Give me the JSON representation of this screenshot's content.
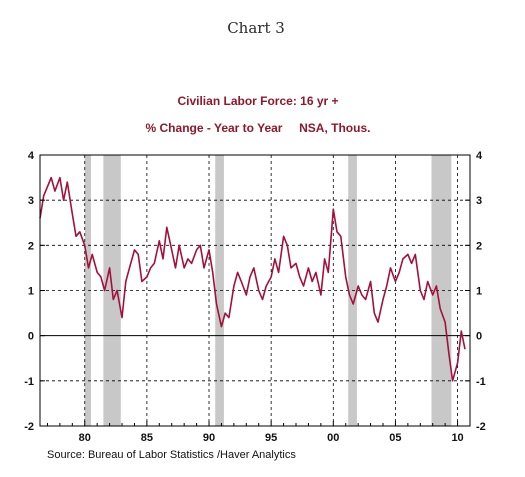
{
  "chart_label": "Chart 3",
  "chart_data": {
    "type": "line",
    "title": "Civilian Labor Force: 16 yr +",
    "subtitle": "% Change - Year to Year     NSA, Thous.",
    "source": "Source:  Bureau of Labor Statistics /Haver Analytics",
    "xlim": [
      1976.4,
      2011.0
    ],
    "ylim": [
      -2,
      4
    ],
    "y_ticks": [
      "4",
      "3",
      "2",
      "1",
      "0",
      "-1",
      "-2"
    ],
    "y_tick_values": [
      4,
      3,
      2,
      1,
      0,
      -1,
      -2
    ],
    "x_ticks": [
      "80",
      "85",
      "90",
      "95",
      "00",
      "05",
      "10"
    ],
    "x_tick_values": [
      1980,
      1985,
      1990,
      1995,
      2000,
      2005,
      2010
    ],
    "grid": true,
    "recessions": [
      {
        "start": 1980.0,
        "end": 1980.5
      },
      {
        "start": 1981.5,
        "end": 1982.9
      },
      {
        "start": 1990.5,
        "end": 1991.2
      },
      {
        "start": 2001.2,
        "end": 2001.9
      },
      {
        "start": 2007.9,
        "end": 2009.5
      }
    ],
    "colors": {
      "line": "#a3113a",
      "recession": "#c8c8c8",
      "title": "#8b1a2e"
    },
    "series": [
      {
        "x": [
          1976.4,
          1976.7,
          1977.0,
          1977.3,
          1977.6,
          1978.0,
          1978.3,
          1978.6,
          1979.0,
          1979.3,
          1979.6,
          1980.0,
          1980.3,
          1980.6,
          1981.0,
          1981.3,
          1981.6,
          1982.0,
          1982.3,
          1982.6,
          1983.0,
          1983.3,
          1983.6,
          1984.0,
          1984.3,
          1984.6,
          1985.0,
          1985.3,
          1985.6,
          1986.0,
          1986.3,
          1986.6,
          1987.0,
          1987.3,
          1987.6,
          1988.0,
          1988.3,
          1988.6,
          1989.0,
          1989.3,
          1989.6,
          1990.0,
          1990.3,
          1990.6,
          1991.0,
          1991.3,
          1991.6,
          1992.0,
          1992.3,
          1992.6,
          1993.0,
          1993.3,
          1993.6,
          1994.0,
          1994.3,
          1994.6,
          1995.0,
          1995.3,
          1995.6,
          1996.0,
          1996.3,
          1996.6,
          1997.0,
          1997.3,
          1997.6,
          1998.0,
          1998.3,
          1998.6,
          1999.0,
          1999.3,
          1999.6,
          2000.0,
          2000.3,
          2000.6,
          2001.0,
          2001.3,
          2001.6,
          2002.0,
          2002.3,
          2002.6,
          2003.0,
          2003.3,
          2003.6,
          2004.0,
          2004.3,
          2004.6,
          2005.0,
          2005.3,
          2005.6,
          2006.0,
          2006.3,
          2006.6,
          2007.0,
          2007.3,
          2007.6,
          2008.0,
          2008.3,
          2008.6,
          2009.0,
          2009.3,
          2009.6,
          2010.0,
          2010.3,
          2010.6
        ],
        "values": [
          2.6,
          3.1,
          3.3,
          3.5,
          3.2,
          3.5,
          3.0,
          3.4,
          2.7,
          2.2,
          2.3,
          2.0,
          1.5,
          1.8,
          1.4,
          1.3,
          1.0,
          1.5,
          0.8,
          1.0,
          0.4,
          1.2,
          1.5,
          1.9,
          1.8,
          1.2,
          1.3,
          1.5,
          1.6,
          2.1,
          1.7,
          2.4,
          1.9,
          1.5,
          2.0,
          1.5,
          1.7,
          1.6,
          1.9,
          2.0,
          1.5,
          1.9,
          1.4,
          0.7,
          0.2,
          0.5,
          0.4,
          1.1,
          1.4,
          1.2,
          0.9,
          1.3,
          1.5,
          1.0,
          0.8,
          1.1,
          1.3,
          1.7,
          1.4,
          2.2,
          2.0,
          1.5,
          1.6,
          1.3,
          1.1,
          1.5,
          1.2,
          1.4,
          0.9,
          1.7,
          1.4,
          2.8,
          2.3,
          2.2,
          1.3,
          0.9,
          0.7,
          1.1,
          0.9,
          0.8,
          1.2,
          0.5,
          0.3,
          0.8,
          1.1,
          1.5,
          1.2,
          1.4,
          1.7,
          1.8,
          1.6,
          1.8,
          1.0,
          0.8,
          1.2,
          0.9,
          1.1,
          0.6,
          0.3,
          -0.4,
          -1.0,
          -0.6,
          0.1,
          -0.3
        ]
      }
    ]
  }
}
